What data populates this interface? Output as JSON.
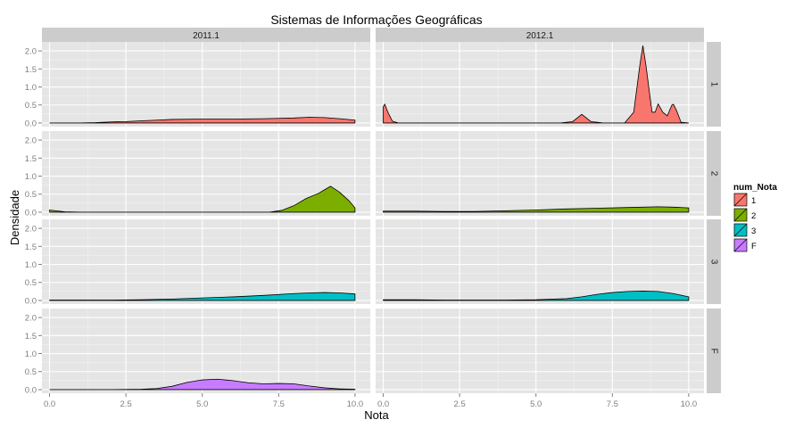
{
  "chart_data": {
    "type": "area",
    "subtype": "faceted-density",
    "title": "Sistemas de Informações Geográficas",
    "xlabel": "Nota",
    "ylabel": "Densidade",
    "xlim": [
      -0.25,
      10.5
    ],
    "ylim": [
      -0.1,
      2.25
    ],
    "x_ticks": [
      0.0,
      2.5,
      5.0,
      7.5,
      10.0
    ],
    "x_tick_labels": [
      "0.0",
      "2.5",
      "5.0",
      "7.5",
      "10.0"
    ],
    "y_ticks": [
      0.0,
      0.5,
      1.0,
      1.5,
      2.0
    ],
    "y_tick_labels": [
      "0.0",
      "0.5",
      "1.0",
      "1.5",
      "2.0"
    ],
    "grid": true,
    "legend": {
      "title": "num_Nota",
      "position": "right",
      "entries": [
        {
          "label": "1",
          "color": "#F8766D"
        },
        {
          "label": "2",
          "color": "#7CAE00"
        },
        {
          "label": "3",
          "color": "#00BFC4"
        },
        {
          "label": "F",
          "color": "#C77CFF"
        }
      ]
    },
    "facet_columns": [
      "2011.1",
      "2012.1"
    ],
    "facet_rows": [
      "1",
      "2",
      "3",
      "F"
    ],
    "panels": [
      {
        "col": "2011.1",
        "row": "1",
        "color": "#F8766D",
        "x": [
          0,
          1,
          1.5,
          2,
          2.5,
          3,
          3.5,
          4,
          5,
          6,
          7,
          8,
          8.5,
          9,
          9.5,
          10
        ],
        "y": [
          0,
          0,
          0.01,
          0.03,
          0.04,
          0.06,
          0.08,
          0.1,
          0.11,
          0.11,
          0.12,
          0.14,
          0.16,
          0.15,
          0.12,
          0.08
        ]
      },
      {
        "col": "2012.1",
        "row": "1",
        "color": "#F8766D",
        "x": [
          0,
          0.05,
          0.15,
          0.3,
          0.5,
          5.8,
          6.2,
          6.5,
          6.8,
          7.2,
          7.9,
          8.2,
          8.4,
          8.5,
          8.6,
          8.8,
          8.9,
          9.0,
          9.15,
          9.3,
          9.45,
          9.5,
          9.6,
          9.75,
          10.0
        ],
        "y": [
          0.45,
          0.52,
          0.3,
          0.05,
          0.0,
          0.0,
          0.04,
          0.24,
          0.04,
          0.0,
          0.0,
          0.3,
          1.6,
          2.15,
          1.6,
          0.3,
          0.3,
          0.53,
          0.3,
          0.2,
          0.5,
          0.52,
          0.35,
          0.02,
          0.0
        ]
      },
      {
        "col": "2011.1",
        "row": "2",
        "color": "#7CAE00",
        "x": [
          0,
          0.2,
          0.5,
          1,
          6.5,
          7.2,
          7.6,
          8.0,
          8.4,
          8.8,
          9.0,
          9.2,
          9.5,
          9.8,
          10.0
        ],
        "y": [
          0.06,
          0.04,
          0.01,
          0,
          0,
          0.0,
          0.05,
          0.18,
          0.38,
          0.52,
          0.62,
          0.72,
          0.55,
          0.32,
          0.12
        ]
      },
      {
        "col": "2012.1",
        "row": "2",
        "color": "#7CAE00",
        "x": [
          0,
          1,
          2,
          3,
          4,
          5,
          6,
          7,
          8,
          9,
          9.5,
          10
        ],
        "y": [
          0.03,
          0.03,
          0.02,
          0.02,
          0.04,
          0.06,
          0.09,
          0.11,
          0.13,
          0.15,
          0.14,
          0.12
        ]
      },
      {
        "col": "2011.1",
        "row": "3",
        "color": "#00BFC4",
        "x": [
          0,
          1,
          2,
          3,
          4,
          5,
          6,
          7,
          8,
          8.5,
          9,
          9.5,
          10
        ],
        "y": [
          0.01,
          0.01,
          0.01,
          0.02,
          0.04,
          0.07,
          0.1,
          0.14,
          0.19,
          0.21,
          0.22,
          0.21,
          0.18
        ]
      },
      {
        "col": "2012.1",
        "row": "3",
        "color": "#00BFC4",
        "x": [
          0,
          1,
          2,
          3,
          4,
          5,
          6,
          6.5,
          7,
          7.5,
          8,
          8.5,
          9,
          9.5,
          10
        ],
        "y": [
          0.02,
          0.02,
          0.01,
          0.01,
          0.01,
          0.02,
          0.05,
          0.1,
          0.17,
          0.22,
          0.25,
          0.26,
          0.25,
          0.19,
          0.1
        ]
      },
      {
        "col": "2011.1",
        "row": "F",
        "color": "#C77CFF",
        "x": [
          0,
          2,
          3,
          3.5,
          4,
          4.5,
          5,
          5.5,
          6,
          6.5,
          7,
          7.5,
          8,
          8.5,
          9,
          9.5,
          10
        ],
        "y": [
          0,
          0.0,
          0.01,
          0.03,
          0.09,
          0.2,
          0.27,
          0.29,
          0.25,
          0.19,
          0.16,
          0.17,
          0.16,
          0.1,
          0.05,
          0.02,
          0.01
        ]
      },
      {
        "col": "2012.1",
        "row": "F",
        "color": "#C77CFF",
        "x": [],
        "y": []
      }
    ]
  }
}
